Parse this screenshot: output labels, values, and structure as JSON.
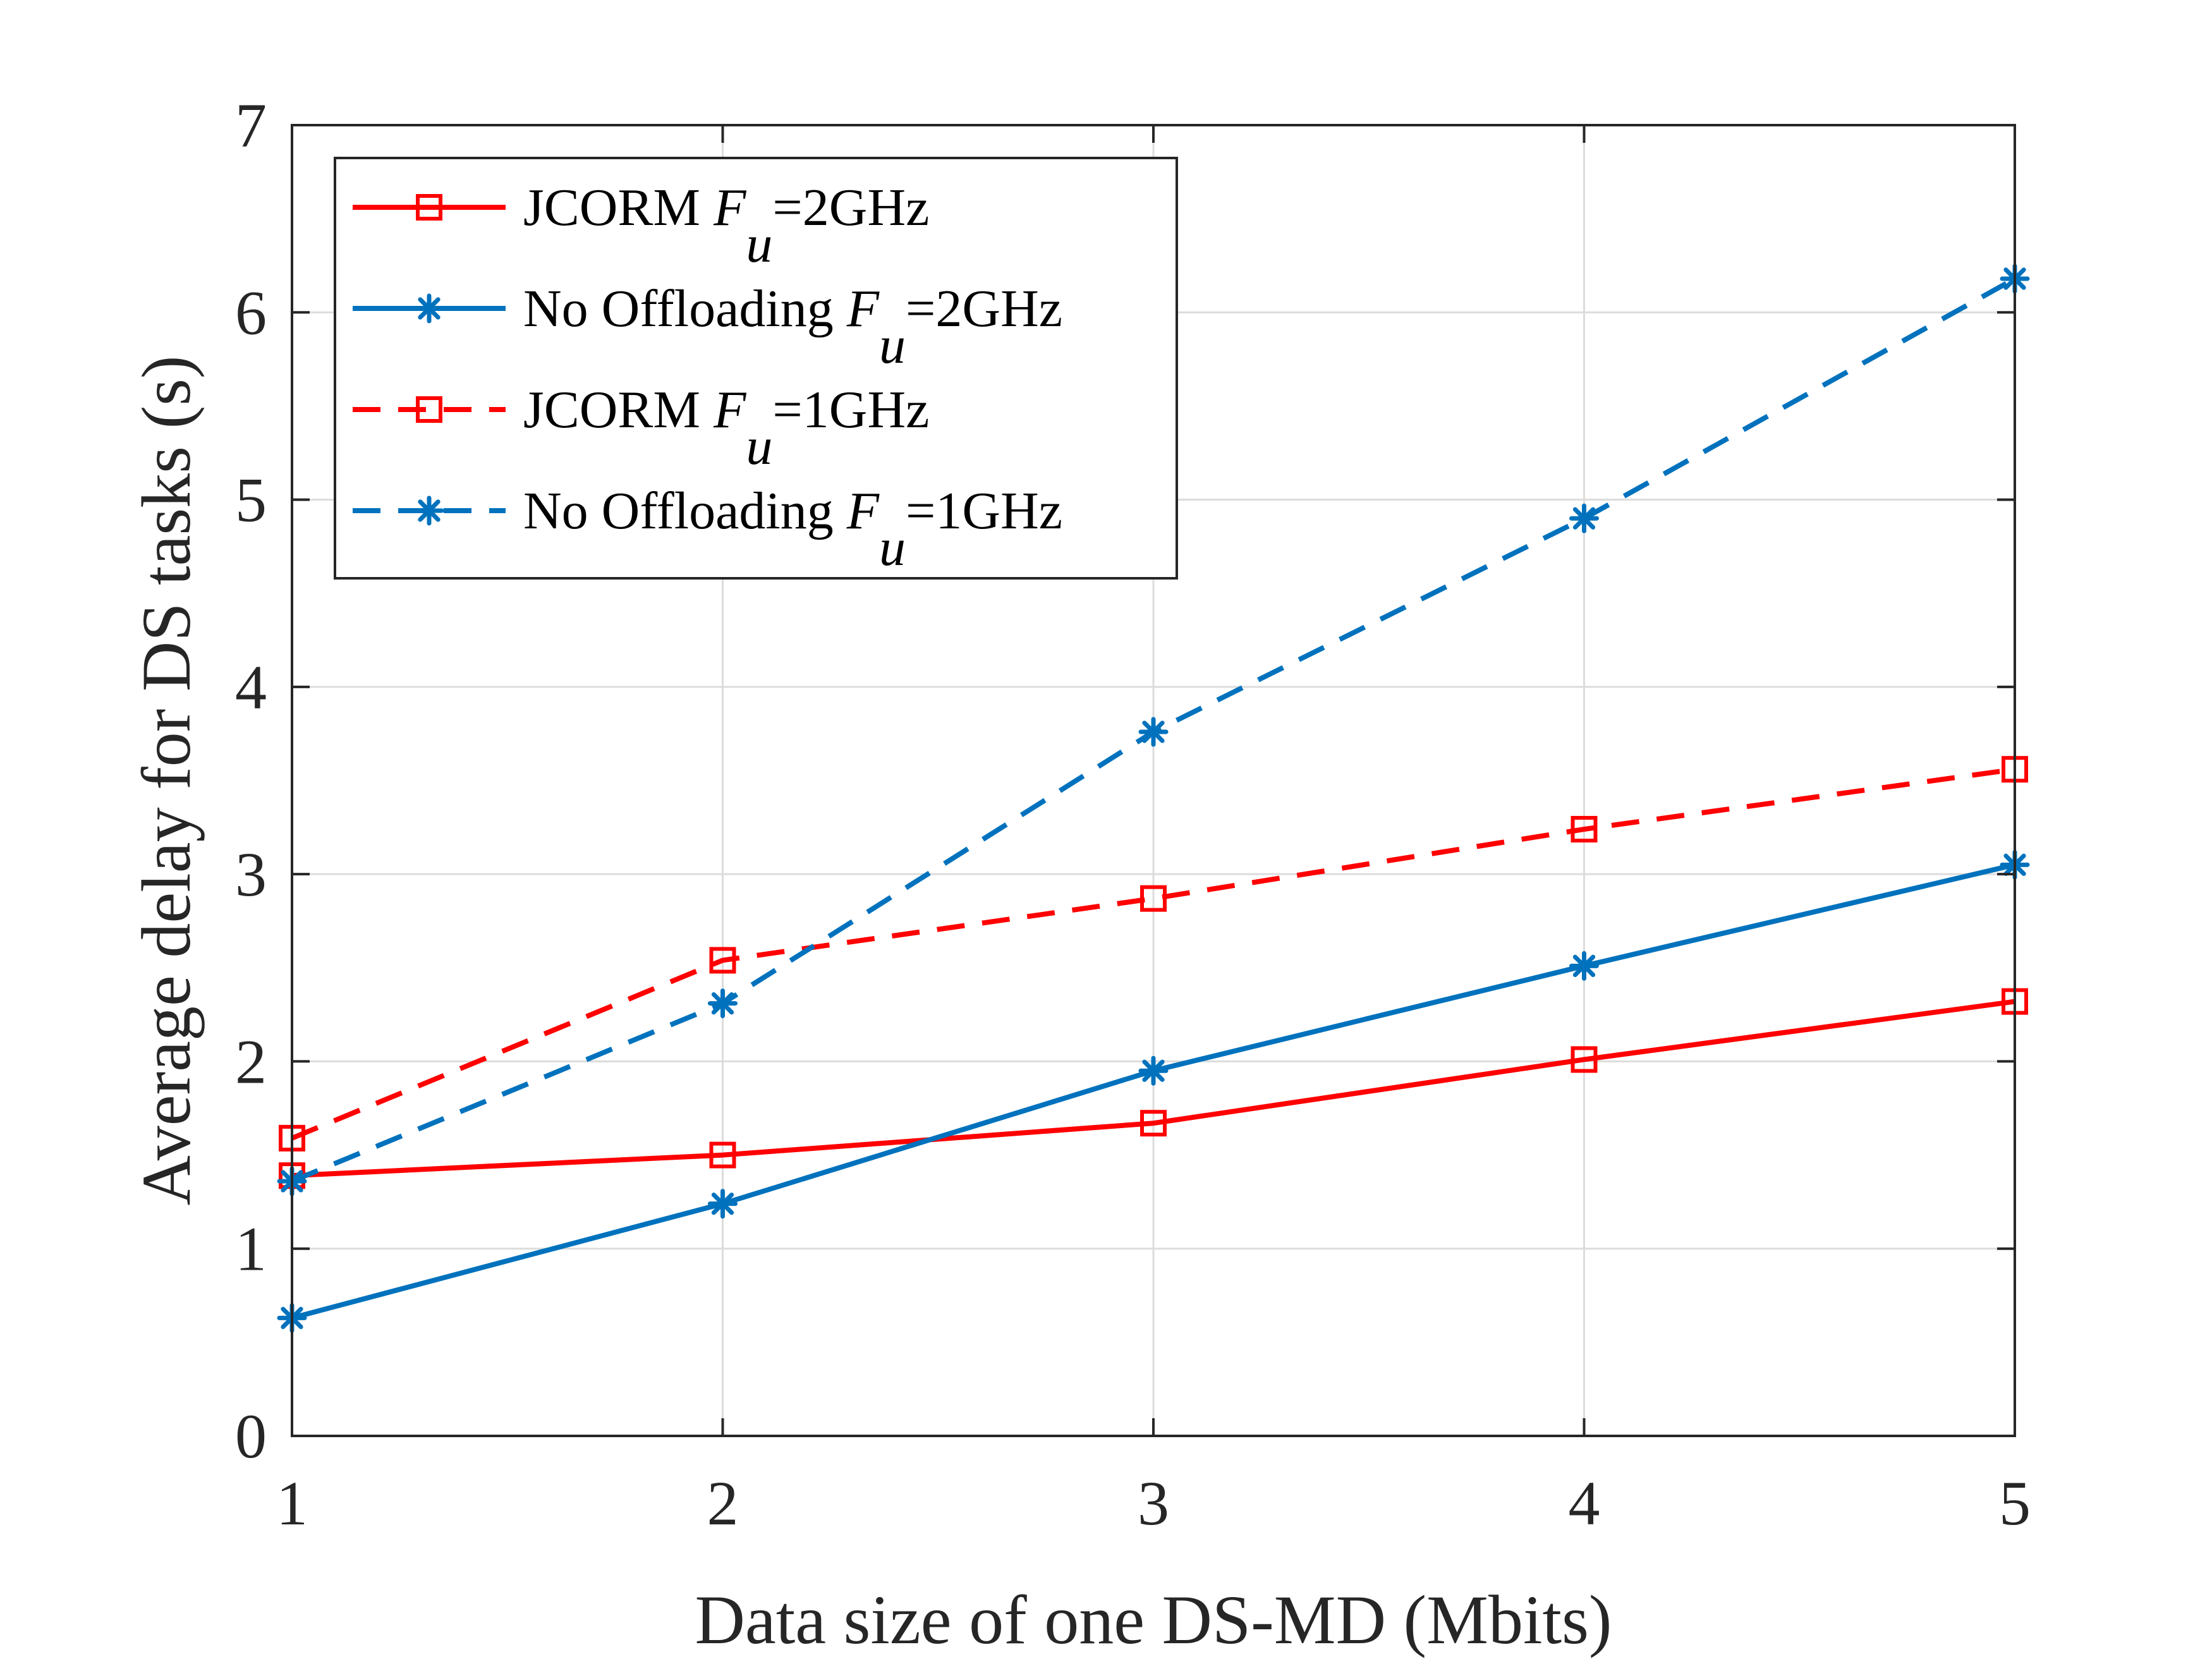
{
  "chart_data": {
    "type": "line",
    "title": "",
    "xlabel": "Data size of one DS-MD (Mbits)",
    "ylabel": "Average delay for DS tasks (s)",
    "xlim": [
      1,
      5
    ],
    "ylim": [
      0,
      7
    ],
    "xticks": [
      1,
      2,
      3,
      4,
      5
    ],
    "yticks": [
      0,
      1,
      2,
      3,
      4,
      5,
      6,
      7
    ],
    "x": [
      1,
      2,
      3,
      4,
      5
    ],
    "grid": true,
    "legend_position": "top-left",
    "series": [
      {
        "name": "JCORM",
        "subscript": "u",
        "var": "F",
        "suffix": "=2GHz",
        "color": "#ff0000",
        "dash": "solid",
        "marker": "square",
        "values": [
          1.39,
          1.5,
          1.67,
          2.01,
          2.32
        ]
      },
      {
        "name": "No Offloading",
        "subscript": "u",
        "var": "F",
        "suffix": "=2GHz",
        "color": "#0072bd",
        "dash": "solid",
        "marker": "asterisk",
        "values": [
          0.63,
          1.24,
          1.95,
          2.51,
          3.05
        ]
      },
      {
        "name": "JCORM",
        "subscript": "u",
        "var": "F",
        "suffix": "=1GHz",
        "color": "#ff0000",
        "dash": "dashed",
        "marker": "square",
        "values": [
          1.59,
          2.54,
          2.87,
          3.24,
          3.56
        ]
      },
      {
        "name": "No Offloading",
        "subscript": "u",
        "var": "F",
        "suffix": "=1GHz",
        "color": "#0072bd",
        "dash": "dashed",
        "marker": "asterisk",
        "values": [
          1.36,
          2.31,
          3.76,
          4.9,
          6.18
        ]
      }
    ]
  }
}
